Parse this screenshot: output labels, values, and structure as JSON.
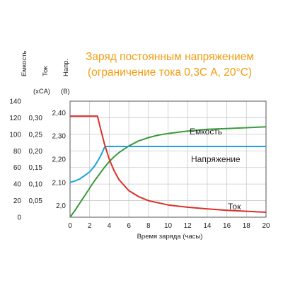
{
  "chart_data": {
    "type": "line",
    "title": [
      "Заряд постоянным напряжением",
      "(ограничение тока 0,3С А, 20°С)"
    ],
    "xlabel": "Время заряда (часы)",
    "x_ticks": [
      "0",
      "2",
      "4",
      "6",
      "8",
      "10",
      "12",
      "14",
      "16",
      "18",
      "20"
    ],
    "xlim": [
      0,
      20
    ],
    "grid": true,
    "axes": {
      "capacity": {
        "label": "Емкость",
        "unit": "(%)",
        "ticks": [
          "0",
          "20",
          "40",
          "60",
          "80",
          "100",
          "120",
          "140"
        ],
        "range": [
          0,
          140
        ]
      },
      "current": {
        "label": "Ток",
        "unit": "(хСА)",
        "ticks": [
          "0,05",
          "0,10",
          "0,15",
          "0,20",
          "0,25",
          "0,30"
        ],
        "range": [
          0,
          0.35
        ]
      },
      "voltage": {
        "label": "Напр.",
        "unit": "(В)",
        "ticks": [
          "2,0",
          "2,10",
          "2,20",
          "2,30",
          "2,40"
        ],
        "range": [
          1.95,
          2.45
        ]
      }
    },
    "series": [
      {
        "name": "Емкость",
        "axis": "capacity",
        "color": "#3a9a3a",
        "points": [
          [
            0,
            0
          ],
          [
            0.5,
            8
          ],
          [
            1,
            17
          ],
          [
            1.5,
            26
          ],
          [
            2,
            35
          ],
          [
            2.5,
            44
          ],
          [
            3,
            52
          ],
          [
            3.5,
            60
          ],
          [
            4,
            67
          ],
          [
            4.5,
            73
          ],
          [
            5,
            78
          ],
          [
            6,
            86
          ],
          [
            7,
            92
          ],
          [
            8,
            96
          ],
          [
            9,
            99
          ],
          [
            10,
            101
          ],
          [
            12,
            104
          ],
          [
            14,
            106
          ],
          [
            16,
            107
          ],
          [
            18,
            108
          ],
          [
            20,
            109
          ]
        ]
      },
      {
        "name": "Напряжение",
        "axis": "voltage",
        "color": "#1aa3dd",
        "points": [
          [
            0,
            2.1
          ],
          [
            0.5,
            2.106
          ],
          [
            1,
            2.115
          ],
          [
            1.5,
            2.13
          ],
          [
            2,
            2.145
          ],
          [
            2.5,
            2.17
          ],
          [
            3,
            2.205
          ],
          [
            3.3,
            2.23
          ],
          [
            3.5,
            2.25
          ],
          [
            3.6,
            2.255
          ],
          [
            20,
            2.255
          ]
        ]
      },
      {
        "name": "Ток",
        "axis": "current",
        "color": "#d9302a",
        "points": [
          [
            0,
            0.305
          ],
          [
            2.8,
            0.305
          ],
          [
            3,
            0.28
          ],
          [
            3.5,
            0.222
          ],
          [
            4,
            0.175
          ],
          [
            4.5,
            0.14
          ],
          [
            5,
            0.113
          ],
          [
            6,
            0.08
          ],
          [
            7,
            0.062
          ],
          [
            8,
            0.05
          ],
          [
            10,
            0.037
          ],
          [
            12,
            0.03
          ],
          [
            14,
            0.025
          ],
          [
            16,
            0.021
          ],
          [
            18,
            0.018
          ],
          [
            20,
            0.015
          ]
        ]
      }
    ]
  }
}
